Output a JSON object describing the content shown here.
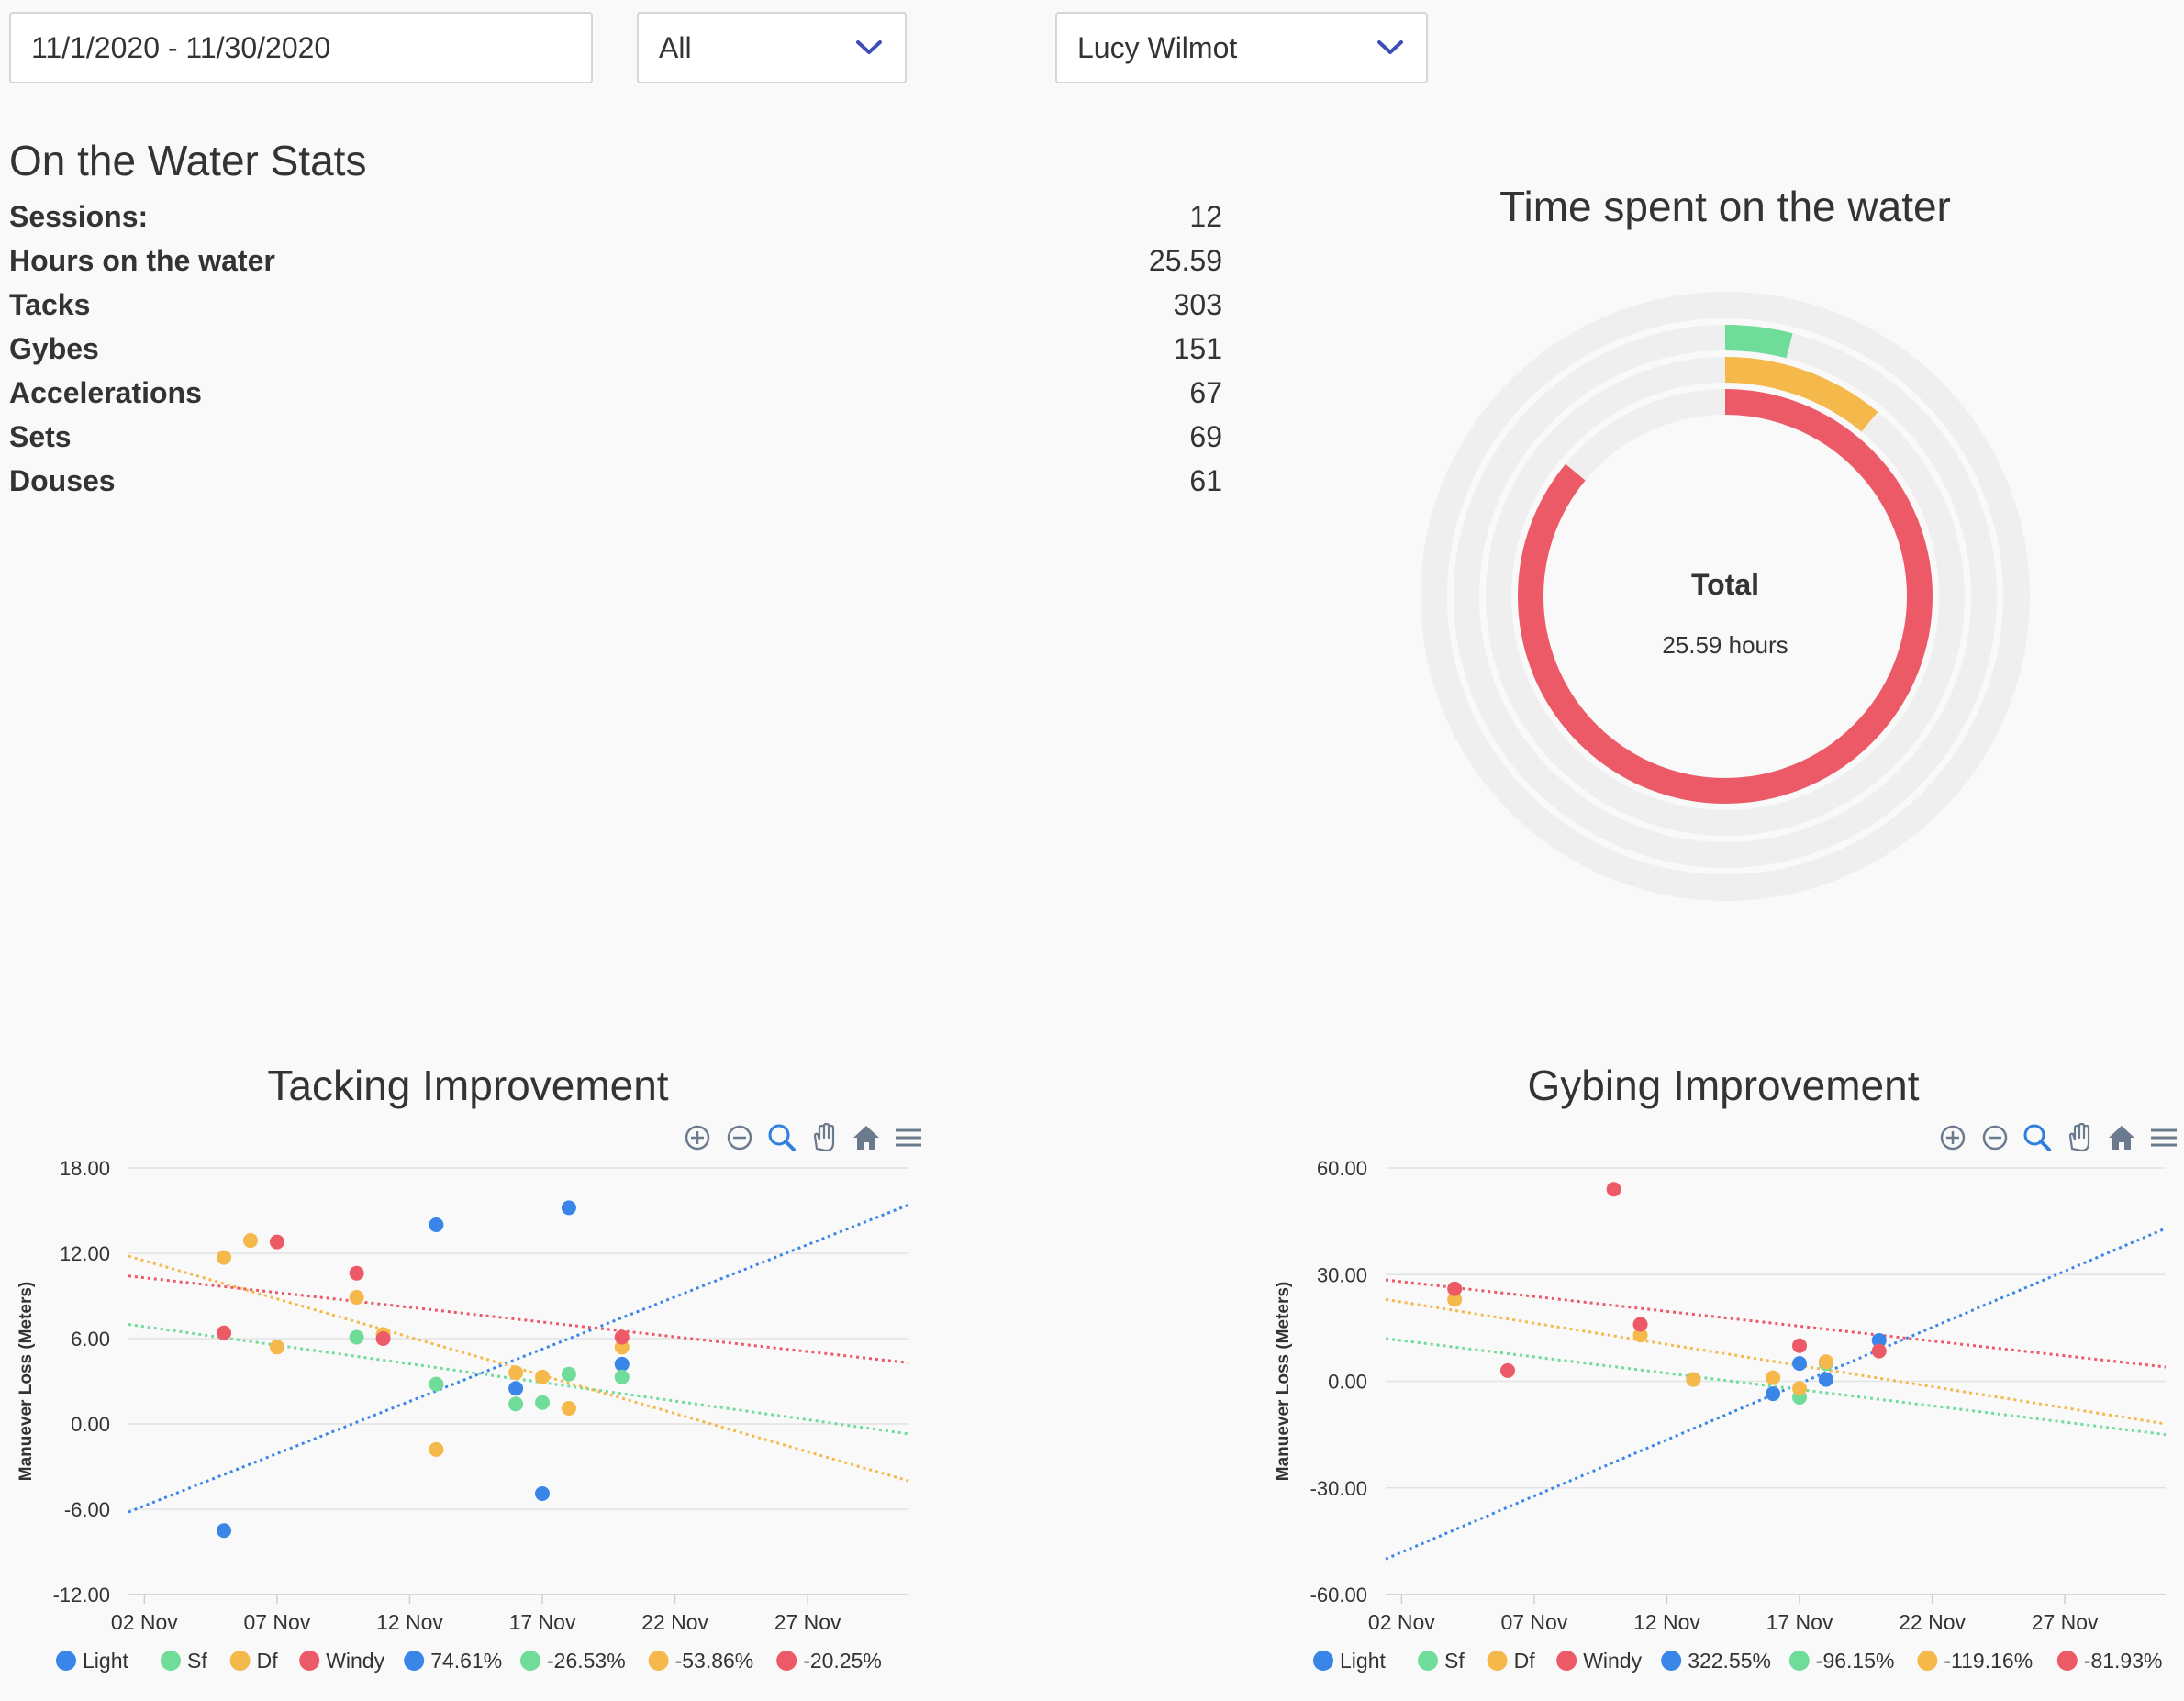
{
  "filters": {
    "date_range": "11/1/2020 - 11/30/2020",
    "weather": "All",
    "athlete": "Lucy Wilmot"
  },
  "stats": {
    "title": "On the Water Stats",
    "rows": [
      {
        "label": "Sessions:",
        "value": "12"
      },
      {
        "label": "Hours on the water",
        "value": "25.59"
      },
      {
        "label": "Tacks",
        "value": "303"
      },
      {
        "label": "Gybes",
        "value": "151"
      },
      {
        "label": "Accelerations",
        "value": "67"
      },
      {
        "label": "Sets",
        "value": "69"
      },
      {
        "label": "Douses",
        "value": "61"
      }
    ]
  },
  "colors": {
    "light": "#3a86e8",
    "sf": "#6fdc9a",
    "df": "#f5b84a",
    "windy": "#ec5a68",
    "track": "#efefef",
    "grid": "#e3e3e3"
  },
  "donut": {
    "title": "Time spent on the water",
    "center_label": "Total",
    "center_value": "25.59 hours",
    "chart_data": {
      "type": "pie",
      "rings": [
        {
          "name": "Light",
          "fraction": 0.0,
          "color": "#3a86e8"
        },
        {
          "name": "Sf",
          "fraction": 0.04,
          "color": "#6fdc9a"
        },
        {
          "name": "Df",
          "fraction": 0.11,
          "color": "#f5b84a"
        },
        {
          "name": "Windy",
          "fraction": 0.86,
          "color": "#ec5a68"
        }
      ]
    }
  },
  "toolbar_icons": [
    "zoom-in-icon",
    "zoom-out-icon",
    "magnifier-icon",
    "pan-hand-icon",
    "home-icon",
    "menu-icon"
  ],
  "tacking": {
    "title": "Tacking Improvement",
    "chart_data": {
      "type": "scatter",
      "ylabel": "Manuever Loss (Meters)",
      "x_ticks": [
        "02 Nov",
        "07 Nov",
        "12 Nov",
        "17 Nov",
        "22 Nov",
        "27 Nov"
      ],
      "x_range": [
        1.4,
        30.8
      ],
      "y_ticks": [
        "18.00",
        "12.00",
        "6.00",
        "0.00",
        "-6.00",
        "-12.00"
      ],
      "ylim": [
        -12,
        18
      ],
      "legend": [
        "Light",
        "Sf",
        "Df",
        "Windy",
        "74.61%",
        "-26.53%",
        "-53.86%",
        "-20.25%"
      ],
      "series": [
        {
          "name": "Light",
          "points": [
            [
              5,
              -7.5
            ],
            [
              13,
              14
            ],
            [
              16,
              2.5
            ],
            [
              17,
              -4.9
            ],
            [
              18,
              15.2
            ],
            [
              20,
              4.2
            ]
          ],
          "trend": [
            [
              1.4,
              -6.2
            ],
            [
              30.8,
              15.4
            ]
          ]
        },
        {
          "name": "Sf",
          "points": [
            [
              10,
              6.1
            ],
            [
              13,
              2.8
            ],
            [
              16,
              1.4
            ],
            [
              17,
              1.5
            ],
            [
              18,
              3.5
            ],
            [
              20,
              3.3
            ]
          ],
          "trend": [
            [
              1.4,
              7.0
            ],
            [
              30.8,
              -0.7
            ]
          ]
        },
        {
          "name": "Df",
          "points": [
            [
              5,
              11.7
            ],
            [
              6,
              12.9
            ],
            [
              7,
              5.4
            ],
            [
              10,
              8.9
            ],
            [
              11,
              6.3
            ],
            [
              13,
              -1.8
            ],
            [
              16,
              3.6
            ],
            [
              17,
              3.3
            ],
            [
              18,
              1.1
            ],
            [
              20,
              5.4
            ]
          ],
          "trend": [
            [
              1.4,
              11.8
            ],
            [
              30.8,
              -4.0
            ]
          ]
        },
        {
          "name": "Windy",
          "points": [
            [
              5,
              6.4
            ],
            [
              7,
              12.8
            ],
            [
              10,
              10.6
            ],
            [
              11,
              6.0
            ],
            [
              20,
              6.1
            ]
          ],
          "trend": [
            [
              1.4,
              10.4
            ],
            [
              30.8,
              4.3
            ]
          ]
        }
      ]
    }
  },
  "gybing": {
    "title": "Gybing Improvement",
    "chart_data": {
      "type": "scatter",
      "ylabel": "Manuever Loss (Meters)",
      "x_ticks": [
        "02 Nov",
        "07 Nov",
        "12 Nov",
        "17 Nov",
        "22 Nov",
        "27 Nov"
      ],
      "x_range": [
        1.4,
        30.8
      ],
      "y_ticks": [
        "60.00",
        "30.00",
        "0.00",
        "-30.00",
        "-60.00"
      ],
      "ylim": [
        -60,
        60
      ],
      "legend": [
        "Light",
        "Sf",
        "Df",
        "Windy",
        "322.55%",
        "-96.15%",
        "-119.16%",
        "-81.93%"
      ],
      "series": [
        {
          "name": "Light",
          "points": [
            [
              16,
              -3.5
            ],
            [
              17,
              5
            ],
            [
              18,
              0.5
            ],
            [
              20,
              11.5
            ]
          ],
          "trend": [
            [
              1.4,
              -50
            ],
            [
              30.8,
              43
            ]
          ]
        },
        {
          "name": "Sf",
          "points": [
            [
              13,
              0.5
            ],
            [
              17,
              -4.5
            ],
            [
              18,
              5
            ]
          ],
          "trend": [
            [
              1.4,
              12
            ],
            [
              30.8,
              -15
            ]
          ]
        },
        {
          "name": "Df",
          "points": [
            [
              4,
              23
            ],
            [
              11,
              13
            ],
            [
              13,
              0.5
            ],
            [
              16,
              1
            ],
            [
              17,
              -2
            ],
            [
              18,
              5.5
            ]
          ],
          "trend": [
            [
              1.4,
              23
            ],
            [
              30.8,
              -12
            ]
          ]
        },
        {
          "name": "Windy",
          "points": [
            [
              4,
              26
            ],
            [
              6,
              3
            ],
            [
              10,
              54
            ],
            [
              11,
              16
            ],
            [
              17,
              10
            ],
            [
              20,
              8.5
            ]
          ],
          "trend": [
            [
              1.4,
              28.5
            ],
            [
              30.8,
              4
            ]
          ]
        }
      ]
    }
  }
}
